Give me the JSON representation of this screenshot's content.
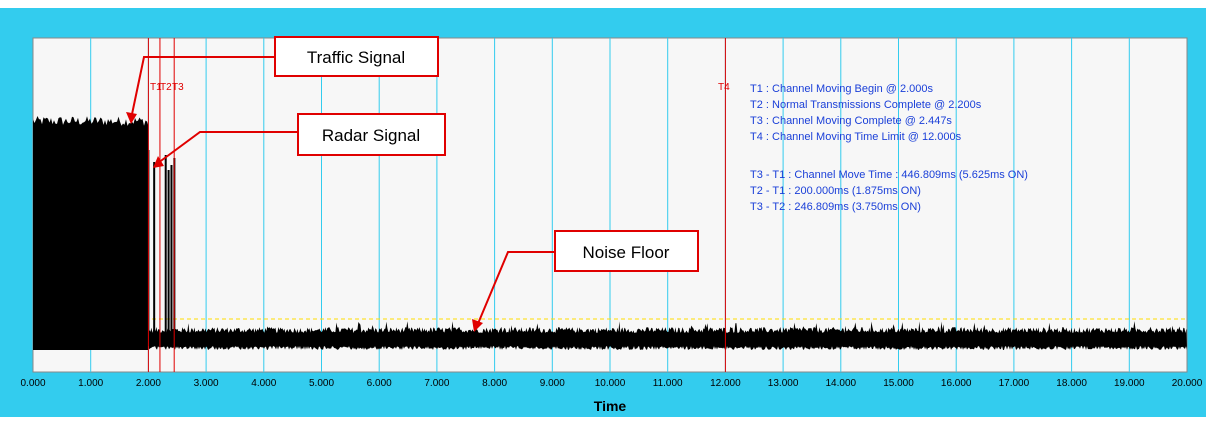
{
  "colors": {
    "frame": "#33ccee",
    "plot_bg": "#f7f7f7",
    "grid": "#33ccee",
    "marker": "#e00000",
    "annotation_text": "#1a3fd8",
    "threshold": "#ffdd00",
    "signal": "#000000",
    "callout_border": "#e00000"
  },
  "chart": {
    "x_axis_label": "Time",
    "x_ticks": [
      "0.000",
      "1.000",
      "2.000",
      "3.000",
      "4.000",
      "5.000",
      "6.000",
      "7.000",
      "8.000",
      "9.000",
      "10.000",
      "11.000",
      "12.000",
      "13.000",
      "14.000",
      "15.000",
      "16.000",
      "17.000",
      "18.000",
      "19.000",
      "20.000"
    ],
    "marker_labels": {
      "t1": "T1",
      "t2": "T2",
      "t3": "T3",
      "t4": "T4"
    },
    "info_lines": [
      "T1 : Channel Moving Begin @ 2.000s",
      "T2 : Normal Transmissions Complete @ 2.200s",
      "T3 : Channel Moving Complete @ 2.447s",
      "T4 : Channel Moving Time Limit @ 12.000s",
      "",
      "T3 - T1 : Channel Move Time : 446.809ms (5.625ms ON)",
      "T2 - T1 : 200.000ms (1.875ms ON)",
      "T3 - T2 : 246.809ms (3.750ms ON)"
    ]
  },
  "callouts": {
    "traffic": "Traffic Signal",
    "radar": "Radar Signal",
    "noise": "Noise Floor"
  },
  "chart_data": {
    "type": "line",
    "xlabel": "Time",
    "xlim": [
      0,
      20
    ],
    "markers": [
      {
        "name": "T1",
        "x": 2.0
      },
      {
        "name": "T2",
        "x": 2.2
      },
      {
        "name": "T3",
        "x": 2.447
      },
      {
        "name": "T4",
        "x": 12.0
      }
    ],
    "segments": [
      {
        "name": "Traffic Signal",
        "x_start": 0.0,
        "x_end": 2.0
      },
      {
        "name": "Radar Signal",
        "pulse_x": [
          2.0,
          2.1,
          2.3,
          2.35,
          2.4,
          2.45
        ]
      },
      {
        "name": "Noise Floor",
        "x_start": 2.0,
        "x_end": 20.0
      }
    ]
  }
}
